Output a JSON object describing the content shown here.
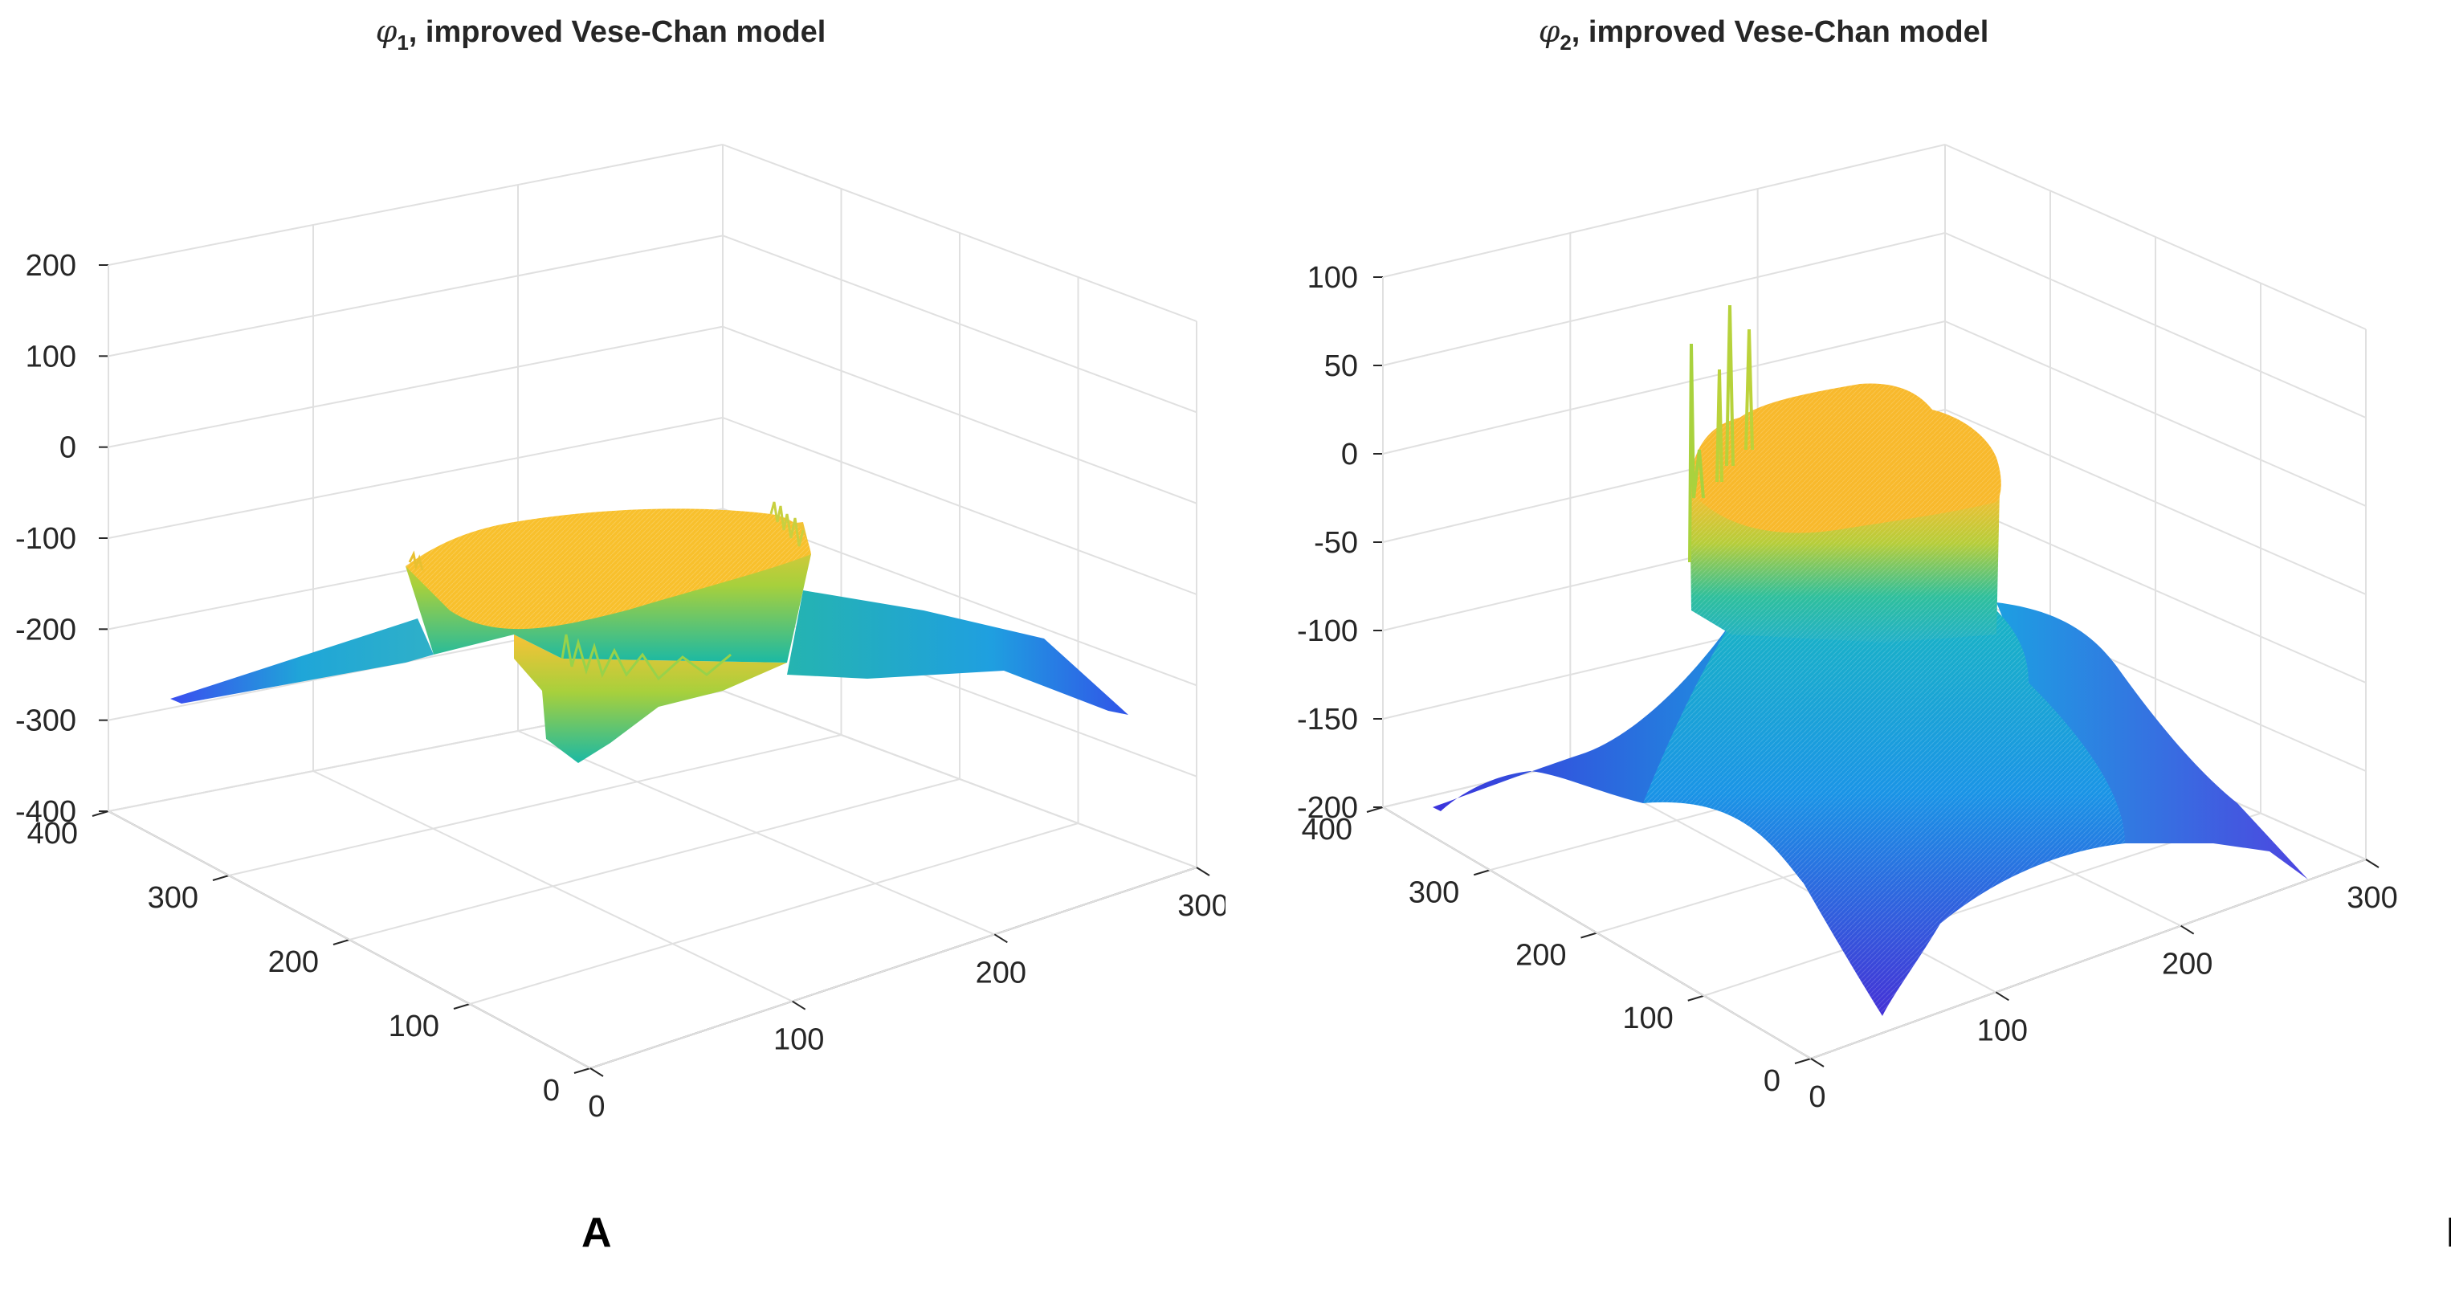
{
  "chart_data": [
    {
      "type": "surface3d",
      "title_symbol": "φ",
      "title_subscript": "1",
      "title_rest": ", improved Vese-Chan model",
      "panel_label": "A",
      "z_ticks": [
        "200",
        "100",
        "0",
        "-100",
        "-200",
        "-300",
        "-400"
      ],
      "zlim": [
        -400,
        200
      ],
      "x_ticks": [
        "0",
        "100",
        "200",
        "300"
      ],
      "xlim": [
        0,
        300
      ],
      "y_ticks": [
        "0",
        "100",
        "200",
        "300",
        "400"
      ],
      "ylim": [
        0,
        400
      ],
      "grid": true,
      "colormap": "parula",
      "plateau_level": -130,
      "base_level_at_far_corners": -290,
      "pit_min": -355
    },
    {
      "type": "surface3d",
      "title_symbol": "φ",
      "title_subscript": "2",
      "title_rest": ", improved Vese-Chan model",
      "panel_label": "B",
      "z_ticks": [
        "100",
        "50",
        "0",
        "-50",
        "-100",
        "-150",
        "-200"
      ],
      "zlim": [
        -220,
        100
      ],
      "x_ticks": [
        "0",
        "100",
        "200",
        "300"
      ],
      "xlim": [
        0,
        300
      ],
      "y_ticks": [
        "0",
        "100",
        "200",
        "300",
        "400"
      ],
      "ylim": [
        0,
        400
      ],
      "grid": true,
      "colormap": "parula",
      "plateau_level": 20,
      "spike_max": 85,
      "base_level_at_far_corners": -210
    }
  ]
}
